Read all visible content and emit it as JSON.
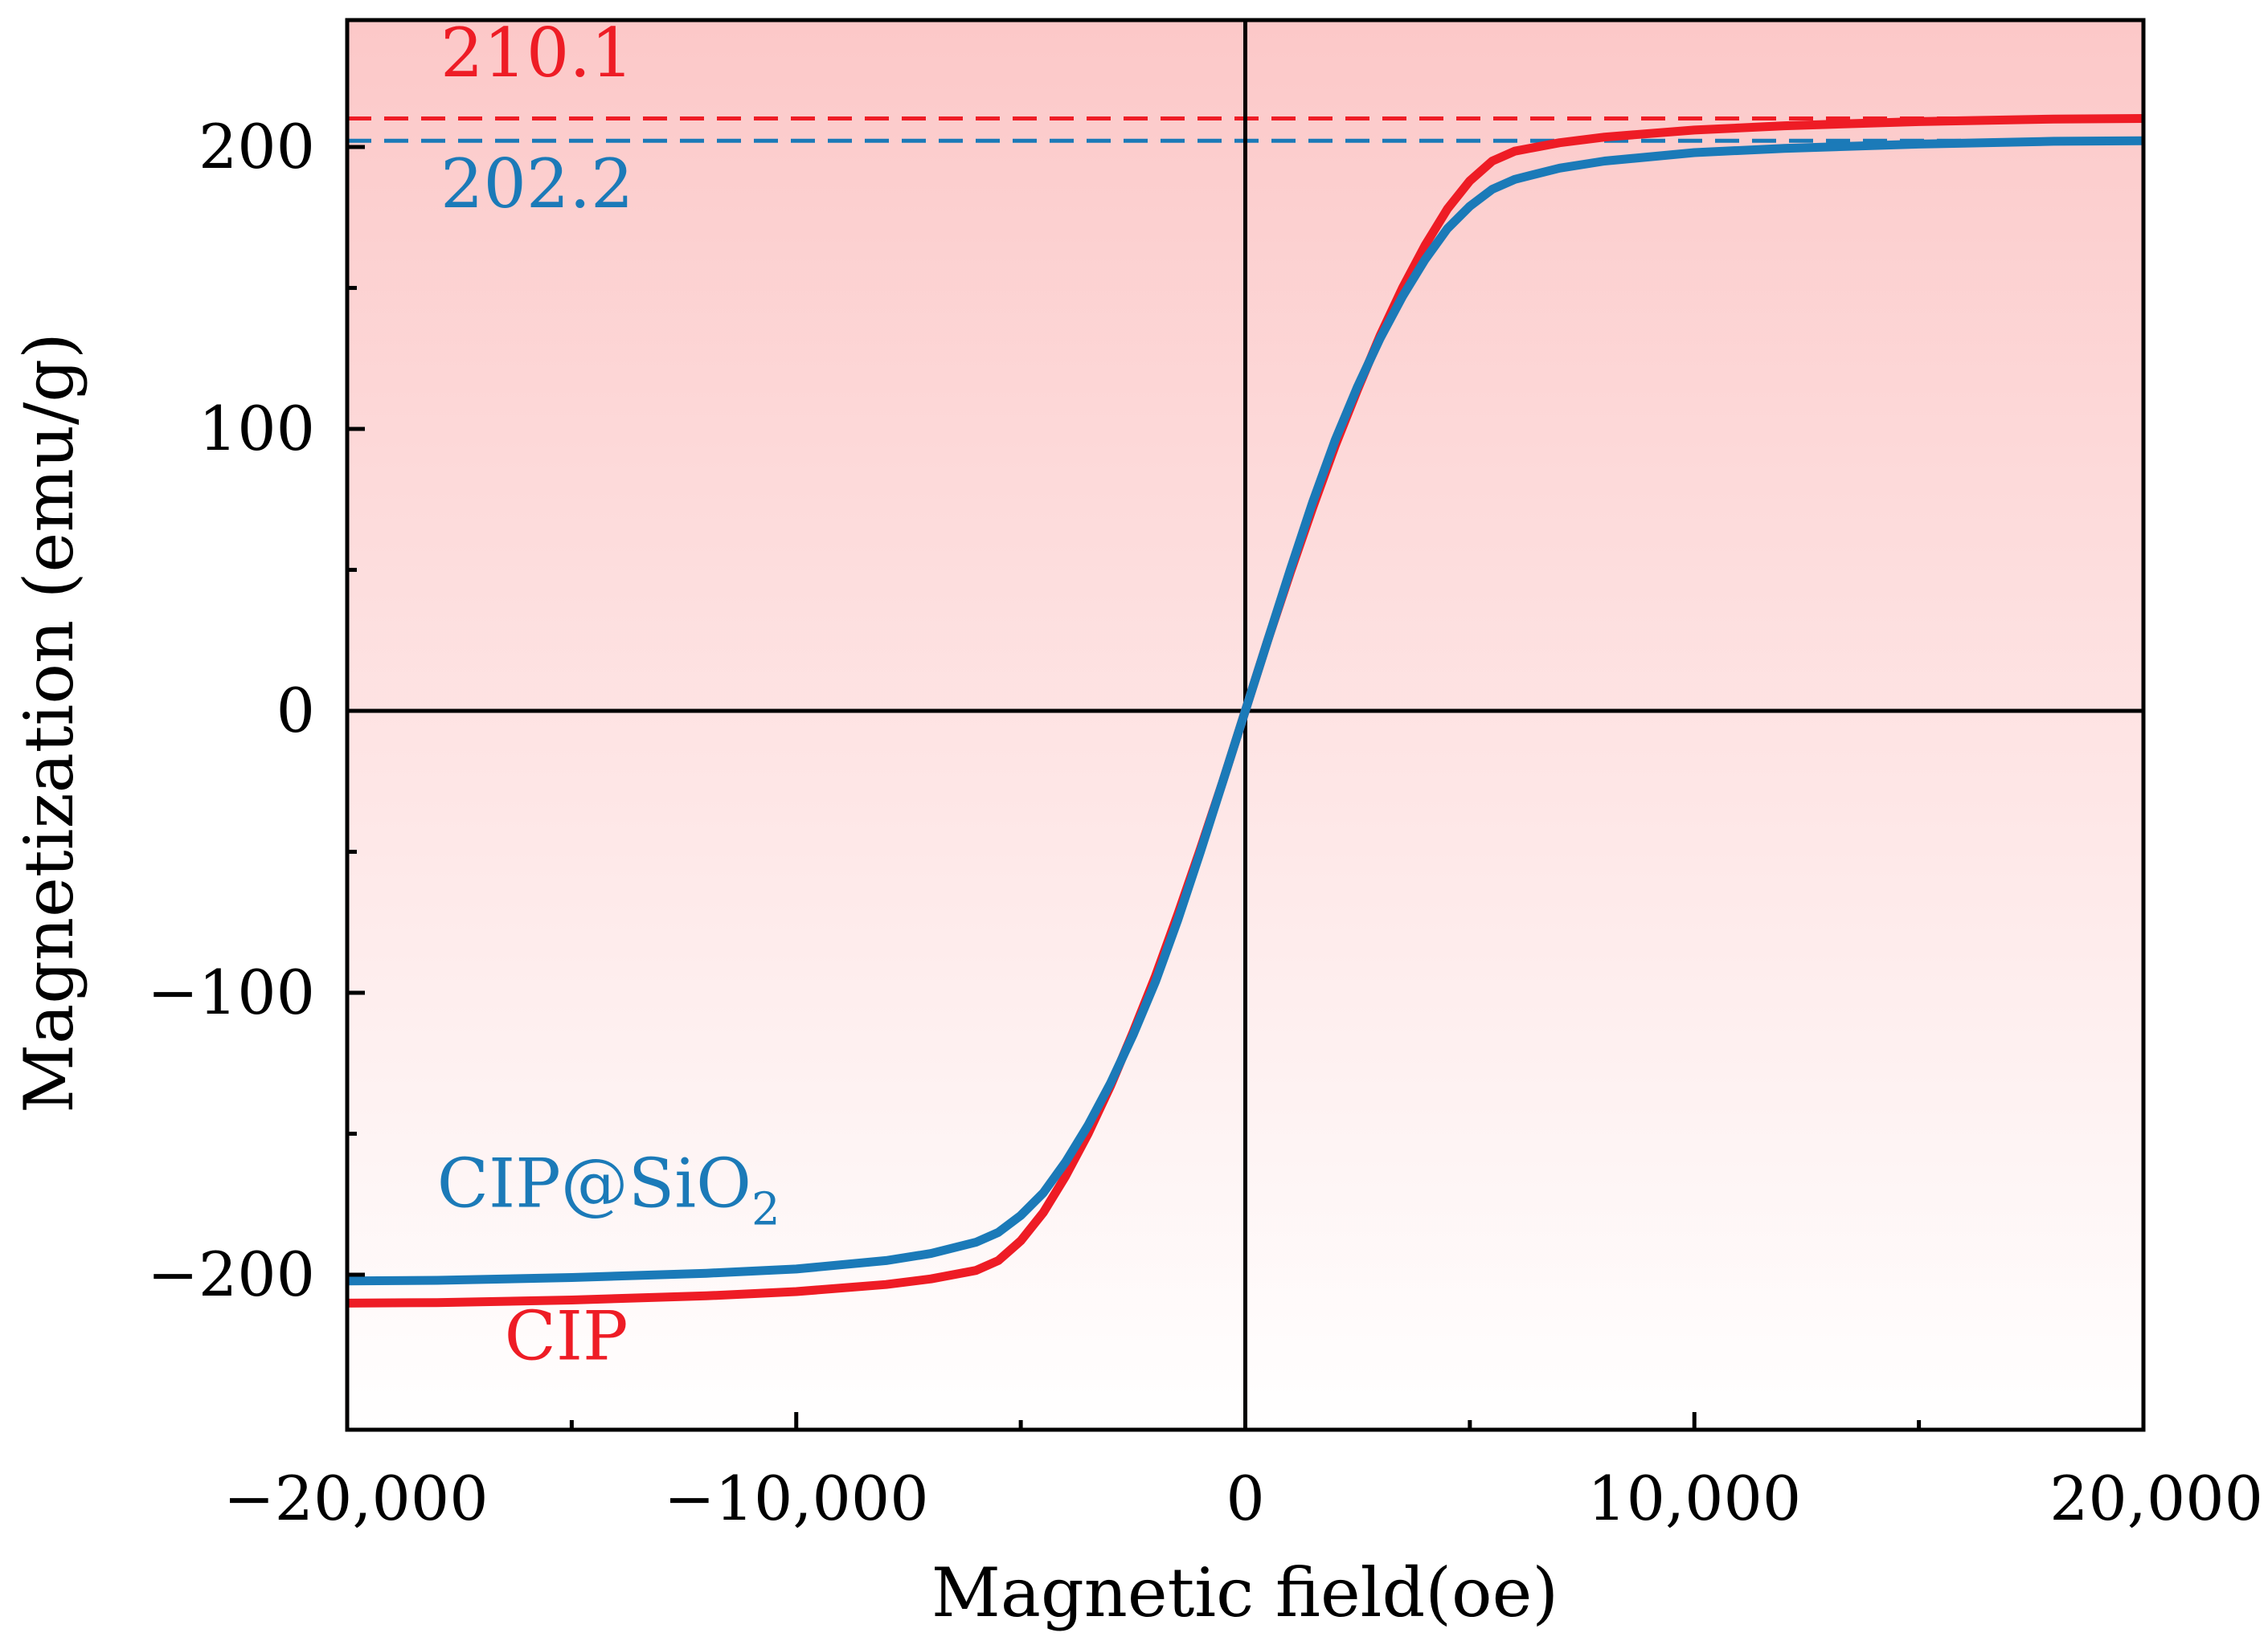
{
  "chart_data": {
    "type": "line",
    "title": "",
    "xlabel": "Magnetic field(oe)",
    "ylabel": "Magnetization (emu/g)",
    "xlim": [
      -20000,
      20000
    ],
    "ylim": [
      -255,
      245
    ],
    "x_ticks": [
      -20000,
      -10000,
      0,
      10000,
      20000
    ],
    "x_tick_labels": [
      "−20,000",
      "−10,000",
      "0",
      "10,000",
      "20,000"
    ],
    "x_minor_ticks": [
      -15000,
      -5000,
      5000,
      15000
    ],
    "y_ticks": [
      -200,
      -100,
      0,
      100,
      200
    ],
    "y_tick_labels": [
      "−200",
      "−100",
      "0",
      "100",
      "200"
    ],
    "y_minor_ticks": [
      -150,
      -50,
      50,
      150
    ],
    "grid": false,
    "zero_lines": true,
    "series": [
      {
        "name": "CIP",
        "color": "#ee1c25",
        "x": [
          -20000,
          -18000,
          -15000,
          -12000,
          -10000,
          -8000,
          -7000,
          -6000,
          -5500,
          -5000,
          -4500,
          -4000,
          -3500,
          -3000,
          -2500,
          -2000,
          -1500,
          -1000,
          -500,
          0,
          500,
          1000,
          1500,
          2000,
          2500,
          3000,
          3500,
          4000,
          4500,
          5000,
          5500,
          6000,
          7000,
          8000,
          10000,
          12000,
          15000,
          18000,
          20000
        ],
        "y": [
          -210.1,
          -209.9,
          -209.0,
          -207.5,
          -206.0,
          -203.5,
          -201.5,
          -198.5,
          -195.0,
          -188.0,
          -178.0,
          -165.0,
          -150.0,
          -133.0,
          -114.0,
          -94.0,
          -72.0,
          -49.0,
          -25.0,
          0,
          25.0,
          49.0,
          72.0,
          94.0,
          114.0,
          133.0,
          150.0,
          165.0,
          178.0,
          188.0,
          195.0,
          198.5,
          201.5,
          203.5,
          206.0,
          207.5,
          209.0,
          209.9,
          210.1
        ]
      },
      {
        "name": "CIP@SiO2",
        "color": "#1b7ab8",
        "x": [
          -20000,
          -18000,
          -15000,
          -12000,
          -10000,
          -8000,
          -7000,
          -6000,
          -5500,
          -5000,
          -4500,
          -4000,
          -3500,
          -3000,
          -2500,
          -2000,
          -1500,
          -1000,
          -500,
          0,
          500,
          1000,
          1500,
          2000,
          2500,
          3000,
          3500,
          4000,
          4500,
          5000,
          5500,
          6000,
          7000,
          8000,
          10000,
          12000,
          15000,
          18000,
          20000
        ],
        "y": [
          -202.2,
          -202.0,
          -201.0,
          -199.5,
          -198.0,
          -195.0,
          -192.5,
          -188.5,
          -185.0,
          -179.0,
          -171.0,
          -160.0,
          -147.0,
          -132.0,
          -115.0,
          -96.0,
          -74.0,
          -50.0,
          -25.0,
          0,
          25.0,
          50.0,
          74.0,
          96.0,
          115.0,
          132.0,
          147.0,
          160.0,
          171.0,
          179.0,
          185.0,
          188.5,
          192.5,
          195.0,
          198.0,
          199.5,
          201.0,
          202.0,
          202.2
        ]
      }
    ],
    "reference_lines": [
      {
        "name": "CIP saturation",
        "y": 210.1,
        "label": "210.1",
        "color": "#ee1c25"
      },
      {
        "name": "CIP@SiO2 saturation",
        "y": 202.2,
        "label": "202.2",
        "color": "#1b7ab8"
      }
    ],
    "annotations": [
      {
        "name": "cip-label",
        "text": "CIP",
        "color": "#ee1c25",
        "at_x": -16500,
        "at_y": -230
      },
      {
        "name": "cip-sio2-label",
        "text": "CIP@SiO",
        "subscript": "2",
        "color": "#1b7ab8",
        "at_x": -18000,
        "at_y": -176
      }
    ],
    "background_gradient": {
      "top": "#fcc8c8",
      "bottom": "#ffffff"
    }
  }
}
